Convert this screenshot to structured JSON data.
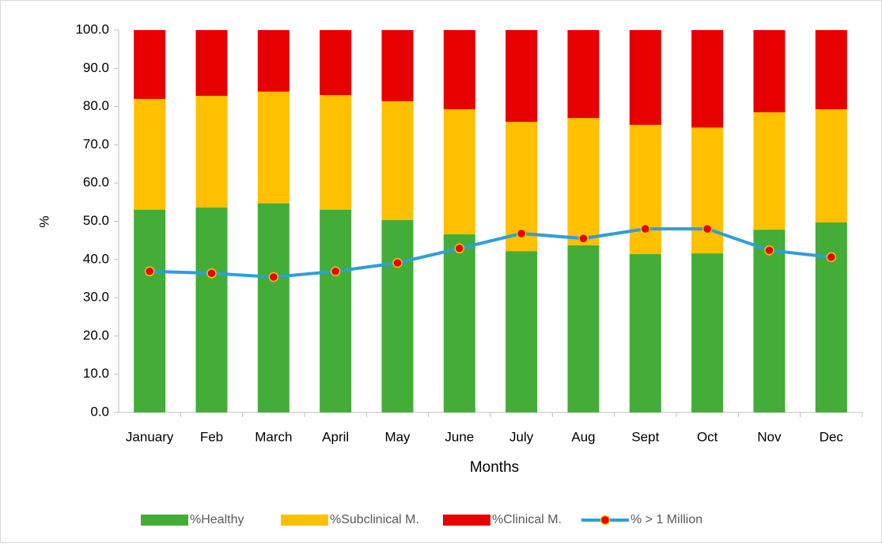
{
  "chart_data": {
    "type": "bar_line",
    "categories": [
      "January",
      "Feb",
      "March",
      "April",
      "May",
      "June",
      "July",
      "Aug",
      "Sept",
      "Oct",
      "Nov",
      "Dec"
    ],
    "series": [
      {
        "name": "%Healthy",
        "kind": "bar",
        "color": "#43ad37",
        "values": [
          53.0,
          53.6,
          54.7,
          53.0,
          50.3,
          46.6,
          42.2,
          43.7,
          41.4,
          41.6,
          47.8,
          49.7
        ]
      },
      {
        "name": "%Subclinical M.",
        "kind": "bar",
        "color": "#ffc000",
        "values": [
          29.0,
          29.2,
          29.2,
          30.0,
          31.1,
          32.7,
          33.8,
          33.3,
          33.8,
          32.9,
          30.7,
          29.6
        ]
      },
      {
        "name": "%Clinical M.",
        "kind": "bar",
        "color": "#e60000",
        "values": [
          18.0,
          17.2,
          16.1,
          17.0,
          18.6,
          20.7,
          24.0,
          23.0,
          24.8,
          25.5,
          21.5,
          20.7
        ]
      },
      {
        "name": "% > 1 Million",
        "kind": "line",
        "color": "#2e9fd8",
        "marker_color": "#e60000",
        "values": [
          36.9,
          36.4,
          35.4,
          36.9,
          39.1,
          42.9,
          46.8,
          45.5,
          48.0,
          48.0,
          42.4,
          40.6
        ]
      }
    ],
    "xlabel": "Months",
    "ylabel": "%",
    "ylim": [
      0,
      100
    ],
    "yticks": [
      {
        "value": 0,
        "label": "0.0"
      },
      {
        "value": 10,
        "label": "10.0"
      },
      {
        "value": 20,
        "label": "20.0"
      },
      {
        "value": 30,
        "label": "30.0"
      },
      {
        "value": 40,
        "label": "40.0"
      },
      {
        "value": 50,
        "label": "50.0"
      },
      {
        "value": 60,
        "label": "60.0"
      },
      {
        "value": 70,
        "label": "70.0"
      },
      {
        "value": 80,
        "label": "80.0"
      },
      {
        "value": 90,
        "label": "90.0"
      },
      {
        "value": 100,
        "label": "100.0"
      }
    ],
    "legend": "bottom"
  }
}
